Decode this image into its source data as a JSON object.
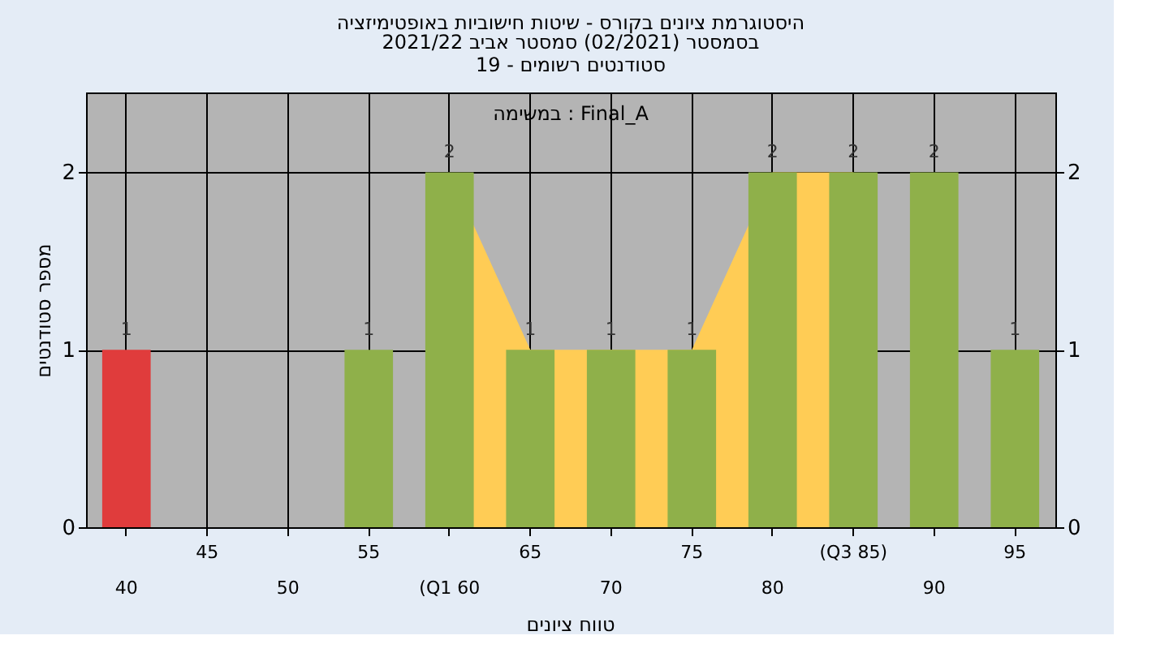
{
  "chart_data": {
    "type": "bar",
    "title": "היסטוגרמת ציונים בקורס - שיטות חישוביות באופטימיזציה",
    "subtitle": [
      "בסמסטר  (02/2021)  סמסטר אביב 2021/22",
      "סטודנטים רשומים - 19"
    ],
    "xlabel": "טווח ציונים",
    "ylabel": "מספר סטודנטים",
    "categories": [
      "40",
      "45",
      "50",
      "55",
      "(Q1 60",
      "65",
      "70",
      "75",
      "80",
      "(Q3 85)",
      "90",
      "95"
    ],
    "series": [
      {
        "type": "area",
        "color": "#ffcc55",
        "values": [
          null,
          null,
          null,
          null,
          2,
          1,
          1,
          1,
          2,
          2,
          null,
          null
        ]
      },
      {
        "type": "bar",
        "colors": [
          "#e03c3c",
          "#8fb04a",
          "#8fb04a",
          "#8fb04a",
          "#8fb04a",
          "#8fb04a",
          "#8fb04a",
          "#8fb04a",
          "#8fb04a",
          "#8fb04a",
          "#8fb04a",
          "#8fb04a"
        ],
        "values": [
          1,
          0,
          0,
          1,
          2,
          1,
          1,
          1,
          2,
          2,
          2,
          1
        ],
        "value_labels": [
          "1",
          null,
          null,
          "1",
          "2",
          "1",
          "1",
          "1",
          "2",
          "2",
          "2",
          "1"
        ]
      }
    ],
    "ylim": [
      0,
      2.45
    ],
    "yticks": [
      0,
      1,
      2
    ],
    "y2lim": [
      0,
      2.45
    ],
    "y2ticks": [
      0,
      1,
      2
    ],
    "grid": true,
    "annotations": [
      "במשימה : Final_A"
    ]
  }
}
